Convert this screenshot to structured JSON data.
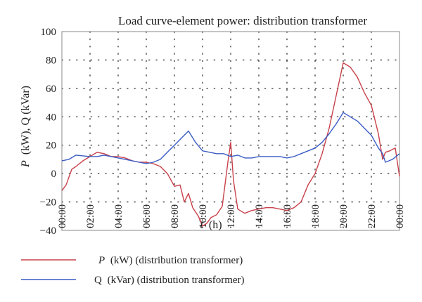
{
  "chart_data": {
    "type": "line",
    "title": "Load curve-element power: distribution transformer",
    "xlabel": "t (h)",
    "xlabel_var": "t",
    "xlabel_unit": "(h)",
    "ylabel": "P (kW), Q (kVar)",
    "ylabel_p": "P",
    "ylabel_rest": "(kW), Q (kVar)",
    "ylim": [
      -40,
      100
    ],
    "xlim": [
      0,
      24
    ],
    "grid": true,
    "legend_position": "below",
    "yticks": [
      {
        "value": -40,
        "label": "−40"
      },
      {
        "value": -20,
        "label": "−20"
      },
      {
        "value": 0,
        "label": "0"
      },
      {
        "value": 20,
        "label": "20"
      },
      {
        "value": 40,
        "label": "40"
      },
      {
        "value": 60,
        "label": "60"
      },
      {
        "value": 80,
        "label": "80"
      },
      {
        "value": 100,
        "label": "100"
      }
    ],
    "xticks": [
      {
        "value": 0,
        "label": "00:00"
      },
      {
        "value": 2,
        "label": "02:00"
      },
      {
        "value": 4,
        "label": "04:00"
      },
      {
        "value": 6,
        "label": "06:00"
      },
      {
        "value": 8,
        "label": "08:00"
      },
      {
        "value": 10,
        "label": "10:00"
      },
      {
        "value": 12,
        "label": "12:00"
      },
      {
        "value": 14,
        "label": "14:00"
      },
      {
        "value": 16,
        "label": "16:00"
      },
      {
        "value": 18,
        "label": "18:00"
      },
      {
        "value": 20,
        "label": "20:00"
      },
      {
        "value": 22,
        "label": "22:00"
      },
      {
        "value": 24,
        "label": "00:00"
      }
    ],
    "series": [
      {
        "name": "P (kW) (distribution transformer)",
        "legend_var": "P",
        "legend_rest": "(kW) (distribution transformer)",
        "color": "#c8414a",
        "x": [
          0,
          0.3,
          0.7,
          1,
          1.5,
          2,
          2.5,
          3,
          3.5,
          4,
          4.5,
          5,
          5.5,
          6,
          6.5,
          7,
          7.5,
          8,
          8.4,
          8.7,
          9,
          9.3,
          9.7,
          10,
          10.3,
          10.6,
          11,
          11.4,
          11.8,
          12,
          12.2,
          12.5,
          13,
          13.5,
          14,
          14.5,
          15,
          15.5,
          16,
          16.5,
          17,
          17.5,
          18,
          18.5,
          19,
          19.5,
          20,
          20.5,
          21,
          21.5,
          22,
          22.5,
          22.8,
          23,
          23.3,
          23.7,
          24
        ],
        "y": [
          -12,
          -8,
          3,
          5,
          9,
          12,
          15,
          14,
          12,
          12,
          11,
          9,
          8,
          8,
          7,
          5,
          0,
          -9,
          -8,
          -20,
          -14,
          -24,
          -30,
          -37,
          -35,
          -31,
          -29,
          -23,
          8,
          22,
          -5,
          -25,
          -28,
          -26,
          -25,
          -24,
          -24,
          -25,
          -26,
          -24,
          -20,
          -8,
          0,
          14,
          32,
          55,
          78,
          75,
          68,
          57,
          48,
          28,
          10,
          15,
          16,
          18,
          -2
        ]
      },
      {
        "name": "Q (kVar) (distribution transformer)",
        "legend_var": "Q",
        "legend_rest": "(kVar) (distribution transformer)",
        "color": "#3a5cc4",
        "x": [
          0,
          0.5,
          1,
          1.5,
          2,
          2.5,
          3,
          3.5,
          4,
          4.5,
          5,
          5.5,
          6,
          6.5,
          7,
          7.5,
          8,
          8.5,
          9,
          9.5,
          10,
          10.5,
          11,
          11.5,
          12,
          12.5,
          13,
          13.5,
          14,
          14.5,
          15,
          15.5,
          16,
          16.5,
          17,
          17.5,
          18,
          18.5,
          19,
          19.5,
          20,
          20.5,
          21,
          21.5,
          22,
          22.5,
          22.8,
          23,
          23.5,
          24
        ],
        "y": [
          9,
          10,
          13,
          12.5,
          12,
          12,
          13,
          12,
          11,
          10,
          9,
          8,
          7,
          8,
          10,
          15,
          20,
          25,
          30,
          22,
          16,
          15,
          14,
          14,
          12,
          13,
          11,
          11,
          12,
          12,
          12,
          12,
          11,
          12,
          14,
          16,
          18,
          22,
          28,
          35,
          43,
          40,
          37,
          32,
          27,
          18,
          14,
          8,
          10,
          14
        ]
      }
    ]
  }
}
